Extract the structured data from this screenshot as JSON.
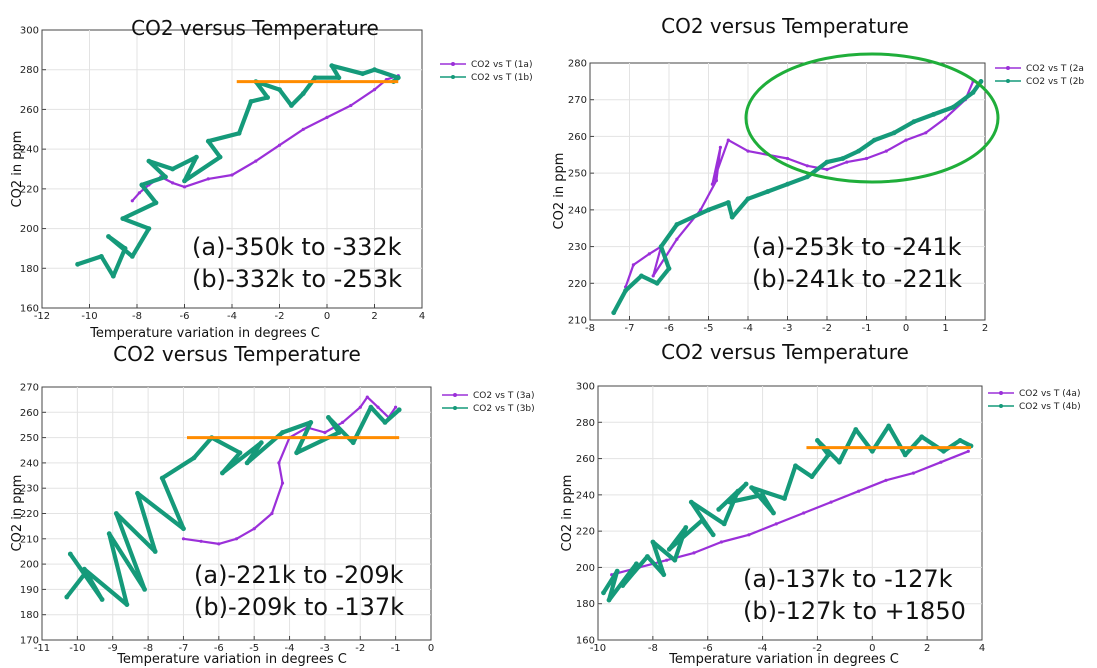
{
  "colors": {
    "series_a": "#9b30d9",
    "series_b": "#159a7a",
    "hline": "#ff8c00",
    "highlight": "#1fae3a",
    "grid": "#e3e3e3"
  },
  "chart_data": [
    {
      "type": "line",
      "title": "CO2 versus Temperature",
      "xlabel": "Temperature variation in degrees C",
      "ylabel": "CO2 in ppm",
      "xlim": [
        -12,
        4
      ],
      "ylim": [
        160,
        300
      ],
      "xticks": [
        -12,
        -10,
        -8,
        -6,
        -4,
        -2,
        0,
        2,
        4
      ],
      "yticks": [
        160,
        180,
        200,
        220,
        240,
        260,
        280,
        300
      ],
      "grid": true,
      "legend_position": "right",
      "annotation": [
        "(a)-350k to -332k",
        "(b)-332k to -253k"
      ],
      "hline": {
        "y": 274,
        "x_from": -3.8,
        "x_to": 3.0
      },
      "series": [
        {
          "name": "CO2 vs T (1a)",
          "color": "series_a",
          "x": [
            -8.2,
            -7.9,
            -7.5,
            -7.0,
            -6.5,
            -6.0,
            -5.0,
            -4.0,
            -3.0,
            -2.0,
            -1.0,
            0.0,
            1.0,
            2.0,
            2.5,
            3.0
          ],
          "y": [
            214,
            218,
            222,
            226,
            223,
            221,
            225,
            227,
            234,
            242,
            250,
            256,
            262,
            270,
            275,
            277
          ]
        },
        {
          "name": "CO2 vs T (1b)",
          "color": "series_b",
          "x": [
            -10.5,
            -9.5,
            -9.0,
            -8.5,
            -9.2,
            -8.2,
            -7.5,
            -8.6,
            -7.2,
            -7.8,
            -6.8,
            -7.5,
            -6.5,
            -5.5,
            -6.0,
            -4.5,
            -5.0,
            -3.7,
            -3.2,
            -2.5,
            -3.0,
            -2.0,
            -1.5,
            -1.0,
            -0.5,
            0.5,
            0.2,
            1.5,
            2.0,
            3.0,
            2.8
          ],
          "y": [
            182,
            186,
            176,
            190,
            196,
            186,
            200,
            205,
            213,
            222,
            226,
            234,
            230,
            236,
            224,
            236,
            244,
            248,
            264,
            266,
            274,
            270,
            262,
            268,
            276,
            276,
            282,
            278,
            280,
            276,
            274
          ]
        }
      ]
    },
    {
      "type": "line",
      "title": "CO2 versus Temperature",
      "xlabel": "",
      "ylabel": "CO2 in ppm",
      "xlim": [
        -8,
        2
      ],
      "ylim": [
        210,
        280
      ],
      "xticks": [
        -8,
        -7,
        -6,
        -5,
        -4,
        -3,
        -2,
        -1,
        0,
        1,
        2
      ],
      "yticks": [
        210,
        220,
        230,
        240,
        250,
        260,
        270,
        280
      ],
      "grid": true,
      "legend_position": "right",
      "annotation": [
        "(a)-253k to -241k",
        "(b)-241k to -221k"
      ],
      "series": [
        {
          "name": "CO2 vs T (2a",
          "color": "series_a",
          "x": [
            -7.1,
            -6.9,
            -6.5,
            -6.2,
            -6.4,
            -5.8,
            -5.2,
            -4.8,
            -4.7,
            -4.9,
            -4.5,
            -4.0,
            -3.0,
            -2.5,
            -2.0,
            -1.5,
            -1.0,
            -0.5,
            0.0,
            0.5,
            1.0,
            1.5,
            1.7
          ],
          "y": [
            219,
            225,
            228,
            230,
            222,
            232,
            240,
            248,
            257,
            247,
            259,
            256,
            254,
            252,
            251,
            253,
            254,
            256,
            259,
            261,
            265,
            270,
            275
          ]
        },
        {
          "name": "CO2 vs T (2b",
          "color": "series_b",
          "x": [
            -7.4,
            -7.1,
            -6.7,
            -6.3,
            -6.0,
            -6.2,
            -5.8,
            -5.0,
            -4.5,
            -4.4,
            -4.0,
            -3.5,
            -3.0,
            -2.5,
            -2.0,
            -1.6,
            -1.2,
            -0.8,
            -0.3,
            0.2,
            0.7,
            1.2,
            1.7,
            1.9
          ],
          "y": [
            212,
            218,
            222,
            220,
            224,
            230,
            236,
            240,
            242,
            238,
            243,
            245,
            247,
            249,
            253,
            254,
            256,
            259,
            261,
            264,
            266,
            268,
            272,
            275
          ]
        }
      ]
    },
    {
      "type": "line",
      "title": "CO2 versus Temperature",
      "xlabel": "Temperature variation in degrees C",
      "ylabel": "CO2 in ppm",
      "xlim": [
        -11,
        0
      ],
      "ylim": [
        170,
        270
      ],
      "xticks": [
        -11,
        -10,
        -9,
        -8,
        -7,
        -6,
        -5,
        -4,
        -3,
        -2,
        -1,
        0
      ],
      "yticks": [
        170,
        180,
        190,
        200,
        210,
        220,
        230,
        240,
        250,
        260,
        270
      ],
      "grid": true,
      "legend_position": "right",
      "annotation": [
        "(a)-221k to -209k",
        "(b)-209k to -137k"
      ],
      "hline": {
        "y": 250,
        "x_from": -6.9,
        "x_to": -0.9
      },
      "series": [
        {
          "name": "CO2 vs T (3a)",
          "color": "series_a",
          "x": [
            -7.0,
            -6.5,
            -6.0,
            -5.5,
            -5.0,
            -4.5,
            -4.2,
            -4.3,
            -4.0,
            -3.5,
            -3.0,
            -2.5,
            -2.0,
            -1.8,
            -1.5,
            -1.2,
            -1.0
          ],
          "y": [
            210,
            209,
            208,
            210,
            214,
            220,
            232,
            240,
            250,
            254,
            252,
            256,
            262,
            266,
            262,
            258,
            262
          ]
        },
        {
          "name": "CO2 vs T (3b)",
          "color": "series_b",
          "x": [
            -10.3,
            -9.8,
            -10.2,
            -9.3,
            -9.8,
            -8.6,
            -9.1,
            -8.1,
            -8.9,
            -7.8,
            -8.3,
            -7.0,
            -7.6,
            -6.7,
            -6.2,
            -5.4,
            -5.9,
            -4.8,
            -5.2,
            -4.2,
            -3.4,
            -3.8,
            -2.6,
            -2.9,
            -2.2,
            -1.7,
            -1.3,
            -0.9
          ],
          "y": [
            187,
            196,
            204,
            186,
            198,
            184,
            212,
            190,
            220,
            205,
            228,
            214,
            234,
            242,
            250,
            244,
            236,
            248,
            240,
            252,
            256,
            244,
            252,
            258,
            248,
            262,
            256,
            261
          ]
        }
      ]
    },
    {
      "type": "line",
      "title": "CO2 versus Temperature",
      "xlabel": "Temperature variation in degrees C",
      "ylabel": "CO2 in ppm",
      "xlim": [
        -10,
        4
      ],
      "ylim": [
        160,
        300
      ],
      "xticks": [
        -10,
        -8,
        -6,
        -4,
        -2,
        0,
        2,
        4
      ],
      "yticks": [
        160,
        180,
        200,
        220,
        240,
        260,
        280,
        300
      ],
      "grid": true,
      "legend_position": "right",
      "annotation": [
        "(a)-137k to -127k",
        "(b)-127k to +1850"
      ],
      "hline": {
        "y": 266,
        "x_from": -2.4,
        "x_to": 3.6
      },
      "series": [
        {
          "name": "CO2 vs T (4a)",
          "color": "series_a",
          "x": [
            -9.5,
            -8.5,
            -7.5,
            -6.5,
            -5.5,
            -4.5,
            -3.5,
            -2.5,
            -1.5,
            -0.5,
            0.5,
            1.5,
            2.5,
            3.5
          ],
          "y": [
            196,
            200,
            204,
            208,
            214,
            218,
            224,
            230,
            236,
            242,
            248,
            252,
            258,
            264
          ]
        },
        {
          "name": "CO2 vs T (4b)",
          "color": "series_b",
          "x": [
            -9.8,
            -9.3,
            -9.6,
            -8.6,
            -9.1,
            -8.2,
            -7.6,
            -8.0,
            -7.2,
            -6.8,
            -7.4,
            -6.2,
            -5.8,
            -6.6,
            -5.4,
            -4.9,
            -5.6,
            -4.6,
            -5.2,
            -4.0,
            -3.6,
            -4.4,
            -3.2,
            -2.8,
            -2.2,
            -1.6,
            -2.0,
            -1.2,
            -0.6,
            0.0,
            0.6,
            1.2,
            1.8,
            2.6,
            3.2,
            3.6
          ],
          "y": [
            186,
            198,
            182,
            202,
            190,
            206,
            196,
            214,
            204,
            222,
            210,
            226,
            218,
            236,
            224,
            242,
            232,
            246,
            236,
            240,
            230,
            244,
            238,
            256,
            250,
            262,
            270,
            258,
            276,
            264,
            278,
            262,
            272,
            264,
            270,
            267
          ]
        }
      ]
    }
  ]
}
